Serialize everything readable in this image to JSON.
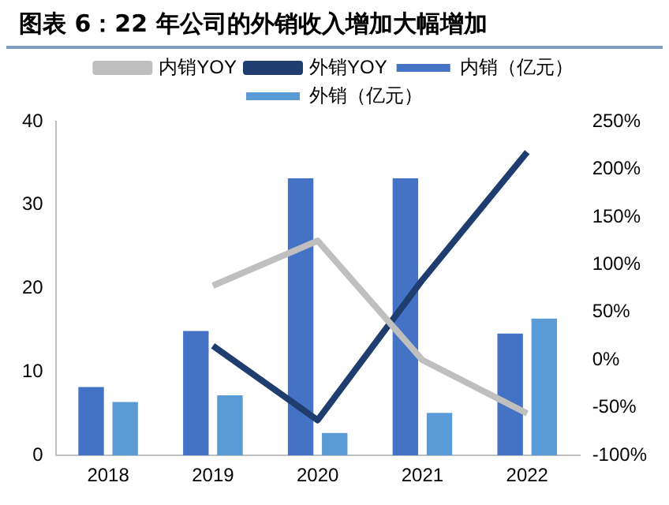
{
  "chart_data": {
    "type": "bar",
    "title": "图表 6：22 年公司的外销收入增加大幅增加",
    "categories": [
      "2018",
      "2019",
      "2020",
      "2021",
      "2022"
    ],
    "series": [
      {
        "name": "内销（亿元）",
        "color": "#4472c4",
        "values": [
          8.2,
          14.9,
          33.2,
          33.2,
          14.6
        ]
      },
      {
        "name": "外销（亿元）",
        "color": "#5b9bd5",
        "values": [
          6.4,
          7.2,
          2.7,
          5.1,
          16.4
        ]
      },
      {
        "name": "内销YOY",
        "type": "line",
        "axis": "y2",
        "color": "#bfbfbf",
        "values": [
          null,
          78,
          125,
          0,
          -56
        ]
      },
      {
        "name": "外销YOY",
        "type": "line",
        "axis": "y2",
        "color": "#1f3d6e",
        "values": [
          null,
          15,
          -63,
          84,
          218
        ]
      }
    ],
    "ylim": [
      0,
      40
    ],
    "yticks": [
      0,
      10,
      20,
      30,
      40
    ],
    "y2lim": [
      -100,
      250
    ],
    "y2ticks": [
      {
        "value": -100,
        "label": "-100%"
      },
      {
        "value": -50,
        "label": "-50%"
      },
      {
        "value": 0,
        "label": "0%"
      },
      {
        "value": 50,
        "label": "50%"
      },
      {
        "value": 100,
        "label": "100%"
      },
      {
        "value": 150,
        "label": "150%"
      },
      {
        "value": 200,
        "label": "200%"
      },
      {
        "value": 250,
        "label": "250%"
      }
    ],
    "grid": false,
    "legend": "top",
    "marker": "none"
  }
}
